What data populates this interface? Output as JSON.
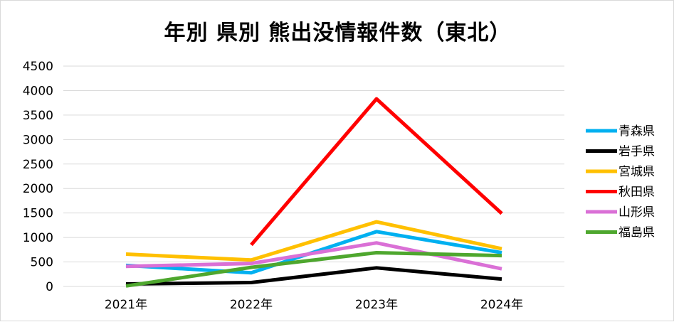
{
  "chart_data": {
    "type": "line",
    "title": "年別 県別 熊出没情報件数（東北）",
    "categories": [
      "2021年",
      "2022年",
      "2023年",
      "2024年"
    ],
    "ylim": [
      0,
      4500
    ],
    "yticks": [
      0,
      500,
      1000,
      1500,
      2000,
      2500,
      3000,
      3500,
      4000,
      4500
    ],
    "grid": true,
    "legend_position": "right",
    "series": [
      {
        "name": "青森県",
        "color": "#00b0f0",
        "values": [
          430,
          280,
          1120,
          690
        ]
      },
      {
        "name": "岩手県",
        "color": "#000000",
        "values": [
          50,
          80,
          380,
          150
        ]
      },
      {
        "name": "宮城県",
        "color": "#ffc000",
        "values": [
          660,
          540,
          1320,
          770
        ]
      },
      {
        "name": "秋田県",
        "color": "#ff0000",
        "values": [
          null,
          850,
          3830,
          1490
        ]
      },
      {
        "name": "山形県",
        "color": "#da70d6",
        "values": [
          410,
          470,
          890,
          360
        ]
      },
      {
        "name": "福島県",
        "color": "#4ea72e",
        "values": [
          10,
          390,
          690,
          630
        ]
      }
    ]
  }
}
